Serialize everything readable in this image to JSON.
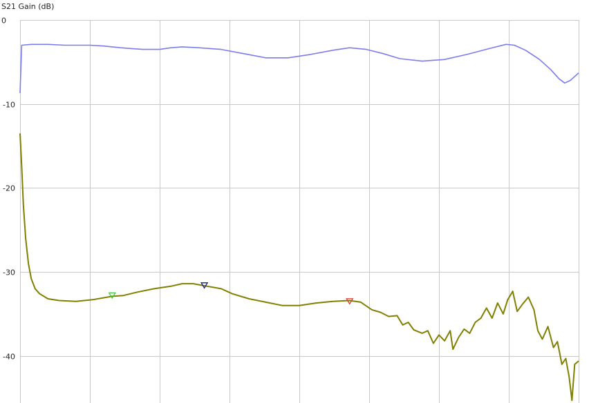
{
  "chart_data": {
    "type": "line",
    "ylabel": "S21 Gain (dB)",
    "xlabel": "",
    "title": "",
    "ylim": [
      -45.5,
      0
    ],
    "xlim": [
      0,
      100
    ],
    "yticks": [
      0,
      -10,
      -20,
      -30,
      -40
    ],
    "ytick_labels": [
      "0",
      "-10",
      "-20",
      "-30",
      "-40"
    ],
    "x_gridlines": [
      0,
      12.5,
      25,
      37.5,
      50,
      62.5,
      75,
      87.5,
      100
    ],
    "grid": true,
    "legend": "none",
    "series": [
      {
        "color": "#7b7bf0",
        "points": [
          [
            0,
            -8.7
          ],
          [
            0.3,
            -3.0
          ],
          [
            2,
            -2.9
          ],
          [
            5,
            -2.9
          ],
          [
            8,
            -3.0
          ],
          [
            12.5,
            -3.0
          ],
          [
            15,
            -3.1
          ],
          [
            18,
            -3.3
          ],
          [
            20,
            -3.4
          ],
          [
            22,
            -3.5
          ],
          [
            25,
            -3.5
          ],
          [
            27,
            -3.3
          ],
          [
            29,
            -3.2
          ],
          [
            32,
            -3.3
          ],
          [
            36,
            -3.5
          ],
          [
            40,
            -4.0
          ],
          [
            44,
            -4.5
          ],
          [
            48,
            -4.5
          ],
          [
            52,
            -4.1
          ],
          [
            56,
            -3.6
          ],
          [
            59,
            -3.3
          ],
          [
            62,
            -3.5
          ],
          [
            65,
            -4.0
          ],
          [
            68,
            -4.6
          ],
          [
            72,
            -4.9
          ],
          [
            76,
            -4.7
          ],
          [
            80,
            -4.1
          ],
          [
            84,
            -3.4
          ],
          [
            87,
            -2.9
          ],
          [
            88.5,
            -3.0
          ],
          [
            90.5,
            -3.6
          ],
          [
            93,
            -4.7
          ],
          [
            95,
            -5.9
          ],
          [
            96.5,
            -7.0
          ],
          [
            97.5,
            -7.5
          ],
          [
            98.5,
            -7.2
          ],
          [
            100,
            -6.3
          ]
        ]
      },
      {
        "color": "#7f7f00",
        "points": [
          [
            0,
            -13.5
          ],
          [
            0.3,
            -17.5
          ],
          [
            0.6,
            -22.0
          ],
          [
            1.0,
            -26.0
          ],
          [
            1.5,
            -29.0
          ],
          [
            2.0,
            -30.8
          ],
          [
            2.7,
            -32.0
          ],
          [
            3.5,
            -32.6
          ],
          [
            5,
            -33.2
          ],
          [
            7,
            -33.4
          ],
          [
            10,
            -33.5
          ],
          [
            13,
            -33.3
          ],
          [
            16.5,
            -32.9
          ],
          [
            18.5,
            -32.8
          ],
          [
            21,
            -32.4
          ],
          [
            24,
            -32.0
          ],
          [
            27,
            -31.7
          ],
          [
            29,
            -31.4
          ],
          [
            31,
            -31.4
          ],
          [
            33.5,
            -31.7
          ],
          [
            36,
            -32.0
          ],
          [
            38,
            -32.6
          ],
          [
            41,
            -33.2
          ],
          [
            44,
            -33.6
          ],
          [
            47,
            -34.0
          ],
          [
            50,
            -34.0
          ],
          [
            53,
            -33.7
          ],
          [
            56,
            -33.5
          ],
          [
            59,
            -33.4
          ],
          [
            61,
            -33.6
          ],
          [
            63,
            -34.5
          ],
          [
            64.5,
            -34.8
          ],
          [
            66,
            -35.3
          ],
          [
            67.5,
            -35.2
          ],
          [
            68.5,
            -36.3
          ],
          [
            69.5,
            -36.0
          ],
          [
            70.5,
            -36.9
          ],
          [
            72,
            -37.3
          ],
          [
            73,
            -37.0
          ],
          [
            74,
            -38.5
          ],
          [
            75,
            -37.5
          ],
          [
            76,
            -38.2
          ],
          [
            77,
            -37.0
          ],
          [
            77.5,
            -39.2
          ],
          [
            78.5,
            -37.8
          ],
          [
            79.5,
            -36.8
          ],
          [
            80.5,
            -37.3
          ],
          [
            81.5,
            -36.0
          ],
          [
            82.5,
            -35.5
          ],
          [
            83.5,
            -34.3
          ],
          [
            84.5,
            -35.5
          ],
          [
            85.5,
            -33.7
          ],
          [
            86.5,
            -35.0
          ],
          [
            87.3,
            -33.3
          ],
          [
            88.2,
            -32.3
          ],
          [
            89,
            -34.7
          ],
          [
            90,
            -33.8
          ],
          [
            91,
            -33.0
          ],
          [
            92,
            -34.5
          ],
          [
            92.7,
            -37.0
          ],
          [
            93.5,
            -38.0
          ],
          [
            94.5,
            -36.5
          ],
          [
            95.5,
            -39.0
          ],
          [
            96.2,
            -38.3
          ],
          [
            97,
            -41.0
          ],
          [
            97.7,
            -40.3
          ],
          [
            98.3,
            -42.5
          ],
          [
            98.8,
            -45.3
          ],
          [
            99.3,
            -41.0
          ],
          [
            100,
            -40.6
          ]
        ],
        "markers": [
          {
            "x": 16.5,
            "y": -32.9,
            "color": "#33cc33"
          },
          {
            "x": 33.0,
            "y": -31.7,
            "color": "#1a1a8c"
          },
          {
            "x": 59.0,
            "y": -33.6,
            "color": "#d23a2a"
          }
        ]
      }
    ]
  }
}
